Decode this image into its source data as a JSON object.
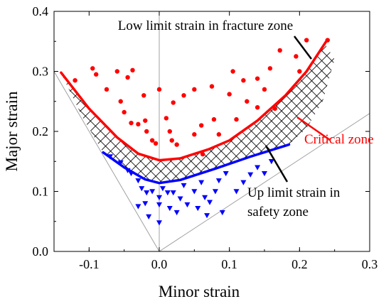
{
  "chart_data": {
    "type": "scatter",
    "xlabel": "Minor strain",
    "ylabel": "Major strain",
    "xlim": [
      -0.15,
      0.3
    ],
    "ylim": [
      0.0,
      0.4
    ],
    "x_ticks": [
      {
        "value": -0.1,
        "label": "-0.1"
      },
      {
        "value": 0.0,
        "label": "0.0"
      },
      {
        "value": 0.1,
        "label": "0.1"
      },
      {
        "value": 0.2,
        "label": "0.2"
      },
      {
        "value": 0.3,
        "label": "0.3"
      }
    ],
    "y_ticks": [
      {
        "value": 0.0,
        "label": "0.0"
      },
      {
        "value": 0.1,
        "label": "0.1"
      },
      {
        "value": 0.2,
        "label": "0.2"
      },
      {
        "value": 0.3,
        "label": "0.3"
      },
      {
        "value": 0.4,
        "label": "0.4"
      }
    ],
    "grid": false,
    "colors": {
      "fracture": "#ff0000",
      "safety": "#0000ff",
      "hatch": "#000000",
      "reference_lines": "#a0a0a0",
      "axis": "#000000"
    },
    "reference_lines": [
      {
        "kind": "vertical",
        "x": 0.0
      },
      {
        "kind": "diagonal",
        "points": [
          [
            -0.15,
            0.3
          ],
          [
            0.0,
            0.0
          ],
          [
            0.3,
            0.23
          ]
        ]
      }
    ],
    "curves": [
      {
        "role": "fracture-limit",
        "points": [
          [
            -0.14,
            0.298
          ],
          [
            -0.1,
            0.238
          ],
          [
            -0.06,
            0.19
          ],
          [
            -0.03,
            0.163
          ],
          [
            0.0,
            0.152
          ],
          [
            0.03,
            0.155
          ],
          [
            0.07,
            0.17
          ],
          [
            0.1,
            0.185
          ],
          [
            0.14,
            0.218
          ],
          [
            0.18,
            0.26
          ],
          [
            0.21,
            0.3
          ],
          [
            0.238,
            0.35
          ]
        ]
      },
      {
        "role": "safety-limit",
        "points": [
          [
            -0.08,
            0.165
          ],
          [
            -0.05,
            0.14
          ],
          [
            -0.02,
            0.12
          ],
          [
            0.0,
            0.114
          ],
          [
            0.03,
            0.119
          ],
          [
            0.08,
            0.138
          ],
          [
            0.13,
            0.158
          ],
          [
            0.185,
            0.178
          ]
        ]
      }
    ],
    "critical_zone_upper": [
      [
        -0.14,
        0.298
      ],
      [
        -0.1,
        0.238
      ],
      [
        -0.06,
        0.19
      ],
      [
        -0.03,
        0.163
      ],
      [
        0.0,
        0.152
      ],
      [
        0.03,
        0.155
      ],
      [
        0.07,
        0.17
      ],
      [
        0.1,
        0.185
      ],
      [
        0.14,
        0.218
      ],
      [
        0.18,
        0.26
      ],
      [
        0.21,
        0.3
      ],
      [
        0.235,
        0.348
      ],
      [
        0.25,
        0.32
      ],
      [
        0.233,
        0.25
      ],
      [
        0.21,
        0.205
      ],
      [
        0.185,
        0.178
      ]
    ],
    "critical_zone_lower": [
      [
        0.13,
        0.158
      ],
      [
        0.08,
        0.138
      ],
      [
        0.03,
        0.119
      ],
      [
        0.0,
        0.114
      ],
      [
        -0.02,
        0.12
      ],
      [
        -0.05,
        0.14
      ],
      [
        -0.08,
        0.165
      ],
      [
        -0.11,
        0.225
      ],
      [
        -0.135,
        0.285
      ]
    ],
    "fracture_points": [
      [
        -0.12,
        0.285
      ],
      [
        -0.095,
        0.305
      ],
      [
        -0.09,
        0.295
      ],
      [
        -0.075,
        0.27
      ],
      [
        -0.06,
        0.3
      ],
      [
        -0.055,
        0.25
      ],
      [
        -0.045,
        0.29
      ],
      [
        -0.038,
        0.302
      ],
      [
        -0.05,
        0.232
      ],
      [
        -0.04,
        0.214
      ],
      [
        -0.03,
        0.212
      ],
      [
        -0.022,
        0.26
      ],
      [
        -0.02,
        0.218
      ],
      [
        -0.018,
        0.2
      ],
      [
        -0.01,
        0.185
      ],
      [
        -0.005,
        0.18
      ],
      [
        0.0,
        0.27
      ],
      [
        0.01,
        0.222
      ],
      [
        0.015,
        0.2
      ],
      [
        0.018,
        0.185
      ],
      [
        0.02,
        0.248
      ],
      [
        0.025,
        0.178
      ],
      [
        0.035,
        0.26
      ],
      [
        0.05,
        0.27
      ],
      [
        0.05,
        0.195
      ],
      [
        0.06,
        0.21
      ],
      [
        0.062,
        0.162
      ],
      [
        0.075,
        0.275
      ],
      [
        0.078,
        0.22
      ],
      [
        0.085,
        0.195
      ],
      [
        0.1,
        0.262
      ],
      [
        0.105,
        0.3
      ],
      [
        0.11,
        0.22
      ],
      [
        0.12,
        0.285
      ],
      [
        0.125,
        0.25
      ],
      [
        0.14,
        0.24
      ],
      [
        0.14,
        0.288
      ],
      [
        0.15,
        0.27
      ],
      [
        0.158,
        0.305
      ],
      [
        0.165,
        0.238
      ],
      [
        0.172,
        0.335
      ],
      [
        0.195,
        0.325
      ],
      [
        0.2,
        0.3
      ],
      [
        0.21,
        0.352
      ],
      [
        0.24,
        0.352
      ]
    ],
    "safety_points": [
      [
        -0.07,
        0.158
      ],
      [
        -0.055,
        0.148
      ],
      [
        -0.045,
        0.135
      ],
      [
        -0.03,
        0.118
      ],
      [
        -0.04,
        0.13
      ],
      [
        -0.025,
        0.105
      ],
      [
        -0.018,
        0.098
      ],
      [
        -0.03,
        0.075
      ],
      [
        -0.02,
        0.08
      ],
      [
        -0.01,
        0.1
      ],
      [
        -0.015,
        0.058
      ],
      [
        0.0,
        0.09
      ],
      [
        0.0,
        0.078
      ],
      [
        0.0,
        0.048
      ],
      [
        0.005,
        0.105
      ],
      [
        0.012,
        0.098
      ],
      [
        0.015,
        0.072
      ],
      [
        0.02,
        0.098
      ],
      [
        0.025,
        0.065
      ],
      [
        0.03,
        0.088
      ],
      [
        0.035,
        0.11
      ],
      [
        0.04,
        0.078
      ],
      [
        0.05,
        0.1
      ],
      [
        0.055,
        0.072
      ],
      [
        0.06,
        0.115
      ],
      [
        0.065,
        0.09
      ],
      [
        0.068,
        0.06
      ],
      [
        0.072,
        0.082
      ],
      [
        0.08,
        0.1
      ],
      [
        0.085,
        0.118
      ],
      [
        0.09,
        0.065
      ],
      [
        0.095,
        0.13
      ],
      [
        0.11,
        0.1
      ],
      [
        0.12,
        0.115
      ],
      [
        0.13,
        0.128
      ],
      [
        0.14,
        0.14
      ],
      [
        0.15,
        0.13
      ],
      [
        0.16,
        0.15
      ]
    ],
    "annotations": {
      "fracture": {
        "text": "Low limit strain in fracture zone",
        "color": "#000000"
      },
      "critical": {
        "text": "Critical zone",
        "color": "#ff0000"
      },
      "safety_line1": {
        "text": "Up limit strain in",
        "color": "#000000"
      },
      "safety_line2": {
        "text": "safety zone",
        "color": "#000000"
      }
    }
  }
}
